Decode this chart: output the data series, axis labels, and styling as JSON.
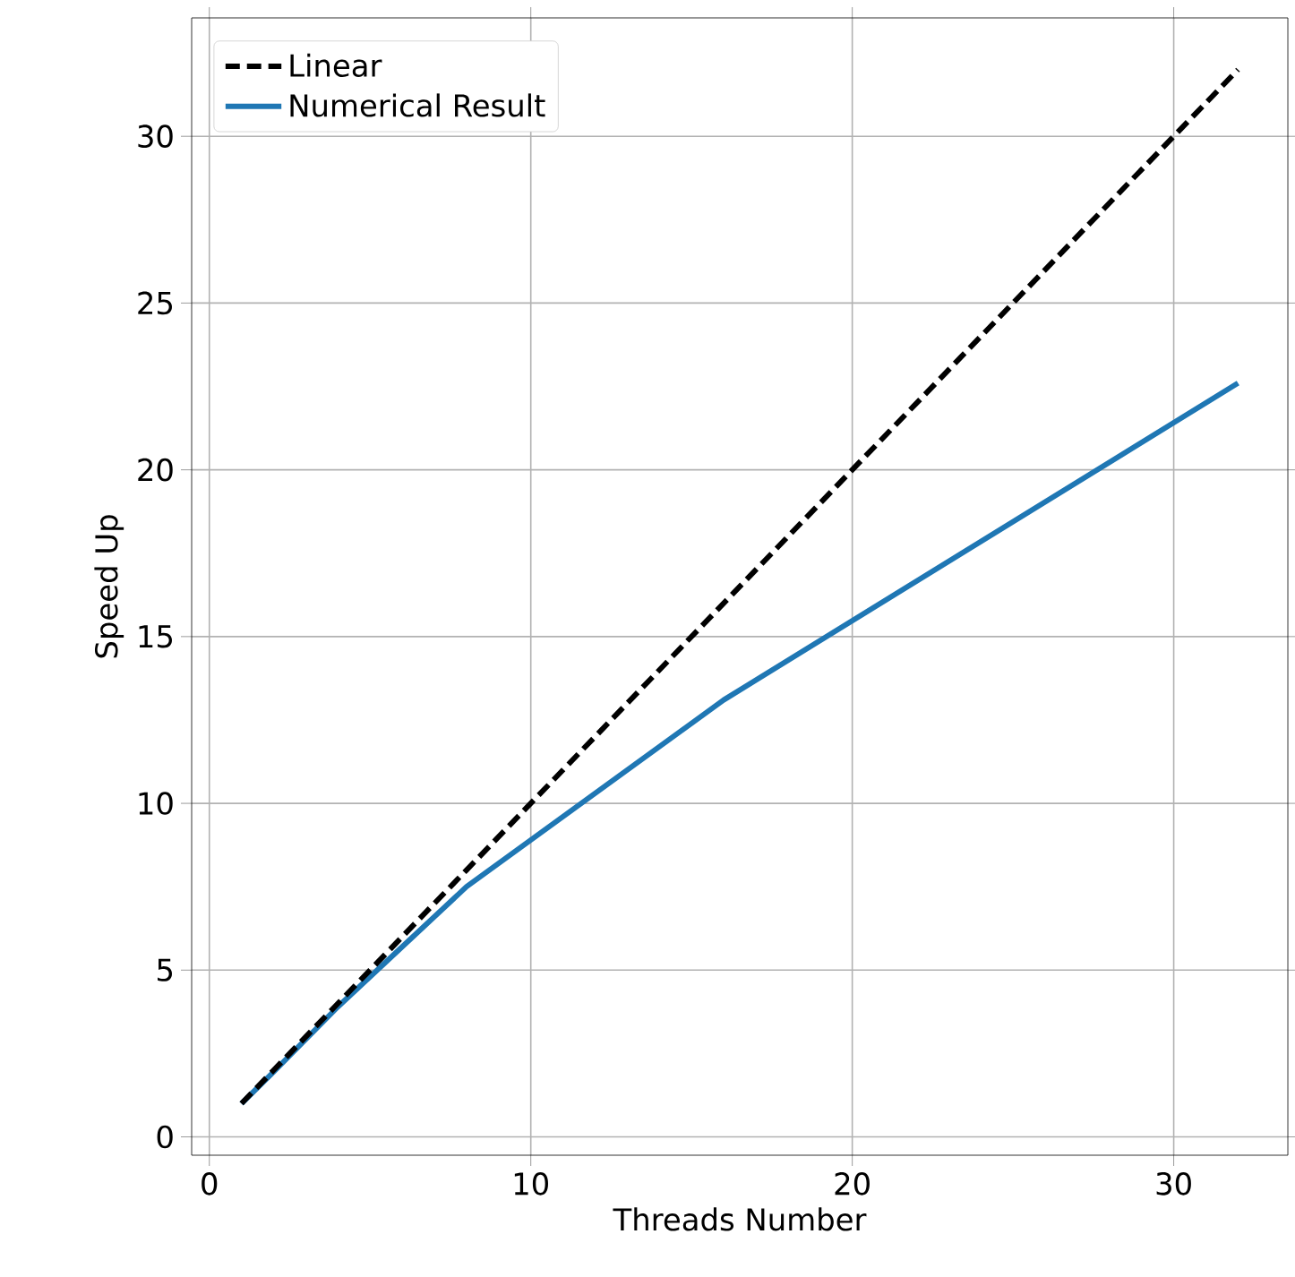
{
  "chart_data": {
    "type": "line",
    "xlabel": "Threads Number",
    "ylabel": "Speed Up",
    "x": [
      1,
      2,
      4,
      8,
      16,
      32
    ],
    "series": [
      {
        "name": "Linear",
        "color": "#000000",
        "line_style": "dashed",
        "values": [
          1,
          2,
          4,
          8,
          16,
          32
        ]
      },
      {
        "name": "Numerical Result",
        "color": "#1f77b4",
        "line_style": "solid",
        "values": [
          1,
          1.95,
          3.9,
          7.5,
          13.1,
          22.6
        ]
      }
    ],
    "xlim": [
      -0.55,
      33.55
    ],
    "ylim": [
      -0.55,
      33.55
    ],
    "xticks": [
      0,
      10,
      20,
      30
    ],
    "yticks": [
      0,
      5,
      10,
      15,
      20,
      25,
      30
    ],
    "grid": true,
    "legend": "top left",
    "marker": "none"
  }
}
